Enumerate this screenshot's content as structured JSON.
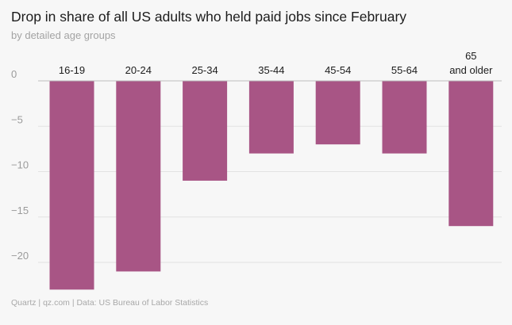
{
  "title": "Drop in share of all US adults who held paid jobs since February",
  "subtitle": "by detailed age groups",
  "footer": "Quartz | qz.com | Data: US Bureau of Labor Statistics",
  "colors": {
    "bar": "#a85585",
    "grid": "#e2e2e2",
    "zero_line": "#bdbdbd",
    "tick_text": "#9b9b9b",
    "category_text": "#1c1c1c"
  },
  "chart_data": {
    "type": "bar",
    "categories": [
      "16-19",
      "20-24",
      "25-34",
      "35-44",
      "45-54",
      "55-64",
      "65 and older"
    ],
    "values": [
      -23,
      -21,
      -11,
      -8,
      -7,
      -8,
      -16
    ],
    "title": "Drop in share of all US adults who held paid jobs since February",
    "subtitle": "by detailed age groups",
    "xlabel": "",
    "ylabel": "",
    "ylim": [
      -23,
      0
    ],
    "yticks": [
      0,
      -5,
      -10,
      -15,
      -20
    ],
    "grid": true,
    "category_axis": "top",
    "legend": "none"
  }
}
